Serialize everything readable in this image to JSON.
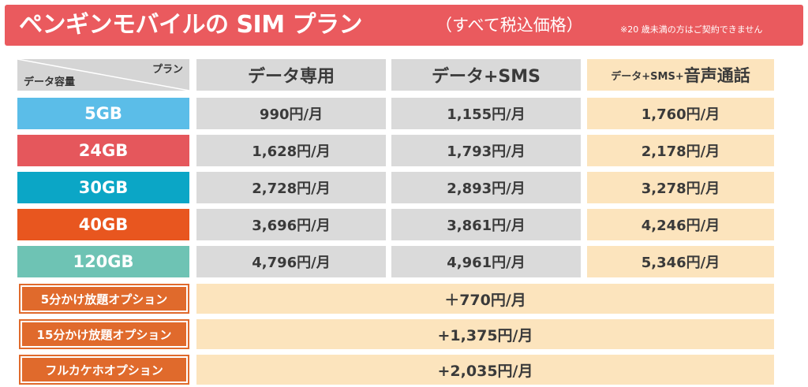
{
  "banner": {
    "title": "ペンギンモバイルの SIM プラン",
    "subtitle": "（すべて税込価格）",
    "note": "※20 歳未満の方はご契約できません",
    "color": "#ea5a5e"
  },
  "table": {
    "corner_plan": "プラン",
    "corner_capacity": "データ容量",
    "headers": {
      "data_only": "データ専用",
      "data_sms": "データ+SMS",
      "voice_prefix": "データ+SMS+",
      "voice_main": "音声通話"
    },
    "rows": [
      {
        "capacity": "5GB",
        "color": "#5bbde8",
        "data_only": "990円/月",
        "data_sms": "1,155円/月",
        "voice": "1,760円/月"
      },
      {
        "capacity": "24GB",
        "color": "#e5575c",
        "data_only": "1,628円/月",
        "data_sms": "1,793円/月",
        "voice": "2,178円/月"
      },
      {
        "capacity": "30GB",
        "color": "#0ba6c6",
        "data_only": "2,728円/月",
        "data_sms": "2,893円/月",
        "voice": "3,278円/月"
      },
      {
        "capacity": "40GB",
        "color": "#e8561f",
        "data_only": "3,696円/月",
        "data_sms": "3,861円/月",
        "voice": "4,246円/月"
      },
      {
        "capacity": "120GB",
        "color": "#6ec3b4",
        "data_only": "4,796円/月",
        "data_sms": "4,961円/月",
        "voice": "5,346円/月"
      }
    ],
    "options": [
      {
        "label": "5分かけ放題オプション",
        "price": "＋770円/月"
      },
      {
        "label": "15分かけ放題オプション",
        "price": "+1,375円/月"
      },
      {
        "label": "フルカケホオプション",
        "price": "+2,035円/月"
      }
    ]
  }
}
